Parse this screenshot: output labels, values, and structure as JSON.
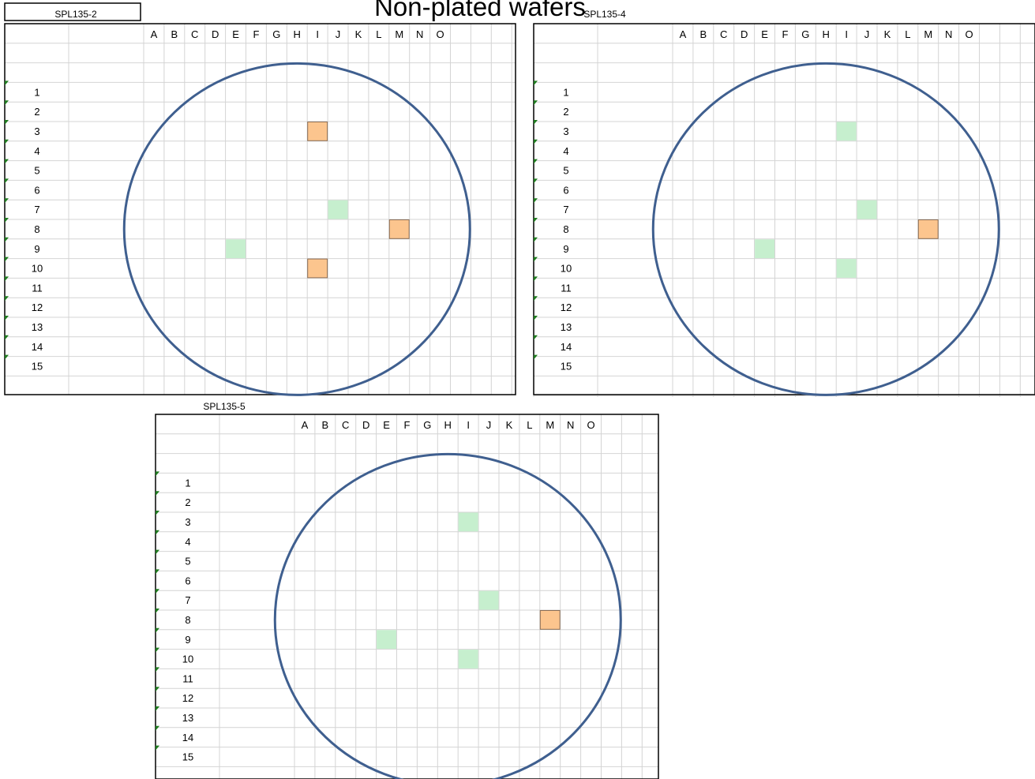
{
  "page": {
    "title": "Non-plated wafers"
  },
  "colors": {
    "grid_line": "#d4d4d4",
    "frame": "#000000",
    "wafer_outline": "#3f5f8f",
    "cell_green": "#c6efce",
    "cell_orange": "#fcc58e",
    "cell_orange_border": "#8a6d55",
    "corner_marker": "#1e7a1e"
  },
  "columns": [
    "A",
    "B",
    "C",
    "D",
    "E",
    "F",
    "G",
    "H",
    "I",
    "J",
    "K",
    "L",
    "M",
    "N",
    "O"
  ],
  "rows": [
    "1",
    "2",
    "3",
    "4",
    "5",
    "6",
    "7",
    "8",
    "9",
    "10",
    "11",
    "12",
    "13",
    "14",
    "15"
  ],
  "wafers": [
    {
      "id": "SPL135-2",
      "label": "SPL135-2",
      "marks": [
        {
          "col": "I",
          "row": "3",
          "status": "orange"
        },
        {
          "col": "J",
          "row": "7",
          "status": "green"
        },
        {
          "col": "M",
          "row": "8",
          "status": "orange"
        },
        {
          "col": "E",
          "row": "9",
          "status": "green"
        },
        {
          "col": "I",
          "row": "10",
          "status": "orange"
        }
      ]
    },
    {
      "id": "SPL135-4",
      "label": "SPL135-4",
      "marks": [
        {
          "col": "I",
          "row": "3",
          "status": "green"
        },
        {
          "col": "J",
          "row": "7",
          "status": "green"
        },
        {
          "col": "M",
          "row": "8",
          "status": "orange"
        },
        {
          "col": "E",
          "row": "9",
          "status": "green"
        },
        {
          "col": "I",
          "row": "10",
          "status": "green"
        }
      ]
    },
    {
      "id": "SPL135-5",
      "label": "SPL135-5",
      "marks": [
        {
          "col": "I",
          "row": "3",
          "status": "green"
        },
        {
          "col": "J",
          "row": "7",
          "status": "green"
        },
        {
          "col": "M",
          "row": "8",
          "status": "orange"
        },
        {
          "col": "E",
          "row": "9",
          "status": "green"
        },
        {
          "col": "I",
          "row": "10",
          "status": "green"
        }
      ]
    }
  ]
}
